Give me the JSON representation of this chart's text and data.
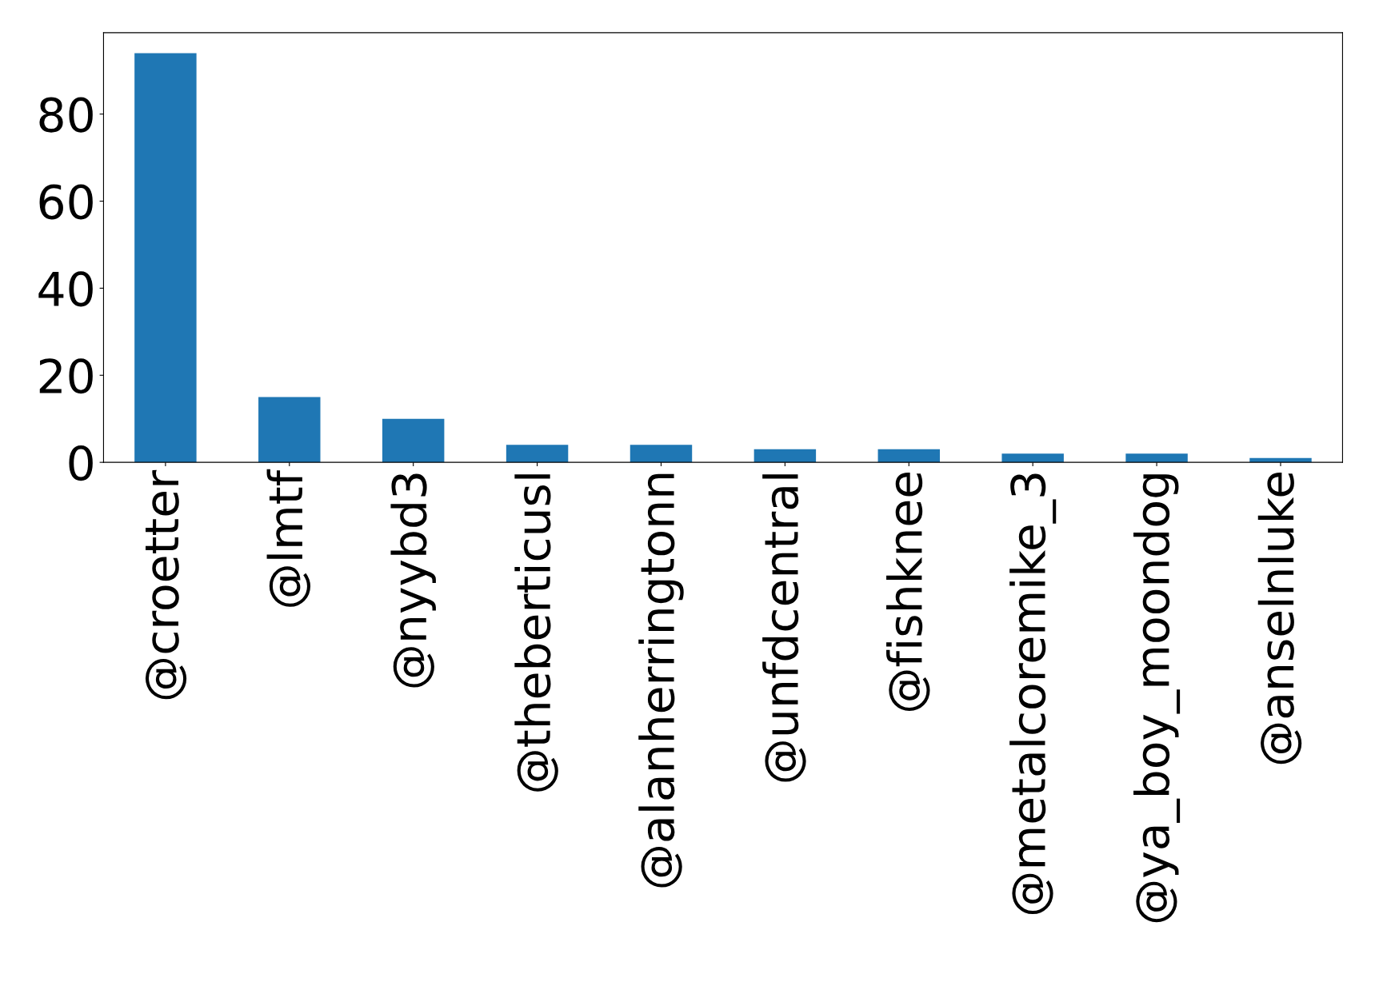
{
  "chart_data": {
    "type": "bar",
    "categories": [
      "@croetter",
      "@lmtf",
      "@nyybd3",
      "@theberticusl",
      "@alanherringtonn",
      "@unfdcentral",
      "@fishknee",
      "@metalcoremike_3",
      "@ya_boy_moondog",
      "@anselnluke"
    ],
    "values": [
      94,
      15,
      10,
      4,
      4,
      3,
      3,
      2,
      2,
      1
    ],
    "color": "#1f77b4",
    "ylim": [
      0,
      98.7
    ],
    "yticks": [
      0,
      20,
      40,
      60,
      80
    ],
    "grid": false,
    "legend": false
  }
}
